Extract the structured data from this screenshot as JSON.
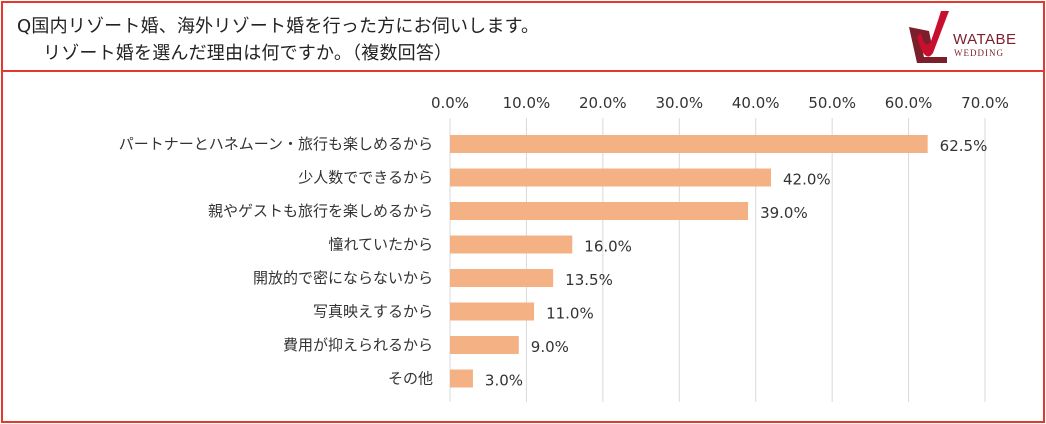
{
  "header": {
    "question_line1": "Q国内リゾート婚、海外リゾート婚を行った方にお伺いします。",
    "question_line2": "リゾート婚を選んだ理由は何ですか。（複数回答）"
  },
  "logo": {
    "brand": "WATABE",
    "sub": "WEDDING",
    "colors": {
      "primary": "#c8102e",
      "dark": "#7a1f2b"
    }
  },
  "colors": {
    "bar": "#f4b183",
    "border": "#e23b2e",
    "grid": "#d9d9d9"
  },
  "chart_data": {
    "type": "bar",
    "orientation": "horizontal",
    "categories": [
      "パートナーとハネムーン・旅行も楽しめるから",
      "少人数でできるから",
      "親やゲストも旅行を楽しめるから",
      "憧れていたから",
      "開放的で密にならないから",
      "写真映えするから",
      "費用が抑えられるから",
      "その他"
    ],
    "values": [
      62.5,
      42.0,
      39.0,
      16.0,
      13.5,
      11.0,
      9.0,
      3.0
    ],
    "value_labels": [
      "62.5%",
      "42.0%",
      "39.0%",
      "16.0%",
      "13.5%",
      "11.0%",
      "9.0%",
      "3.0%"
    ],
    "x_ticks": [
      "0.0%",
      "10.0%",
      "20.0%",
      "30.0%",
      "40.0%",
      "50.0%",
      "60.0%",
      "70.0%"
    ],
    "xlim": [
      0,
      70
    ],
    "x_axis_position": "top",
    "grid": true,
    "legend": "none"
  }
}
